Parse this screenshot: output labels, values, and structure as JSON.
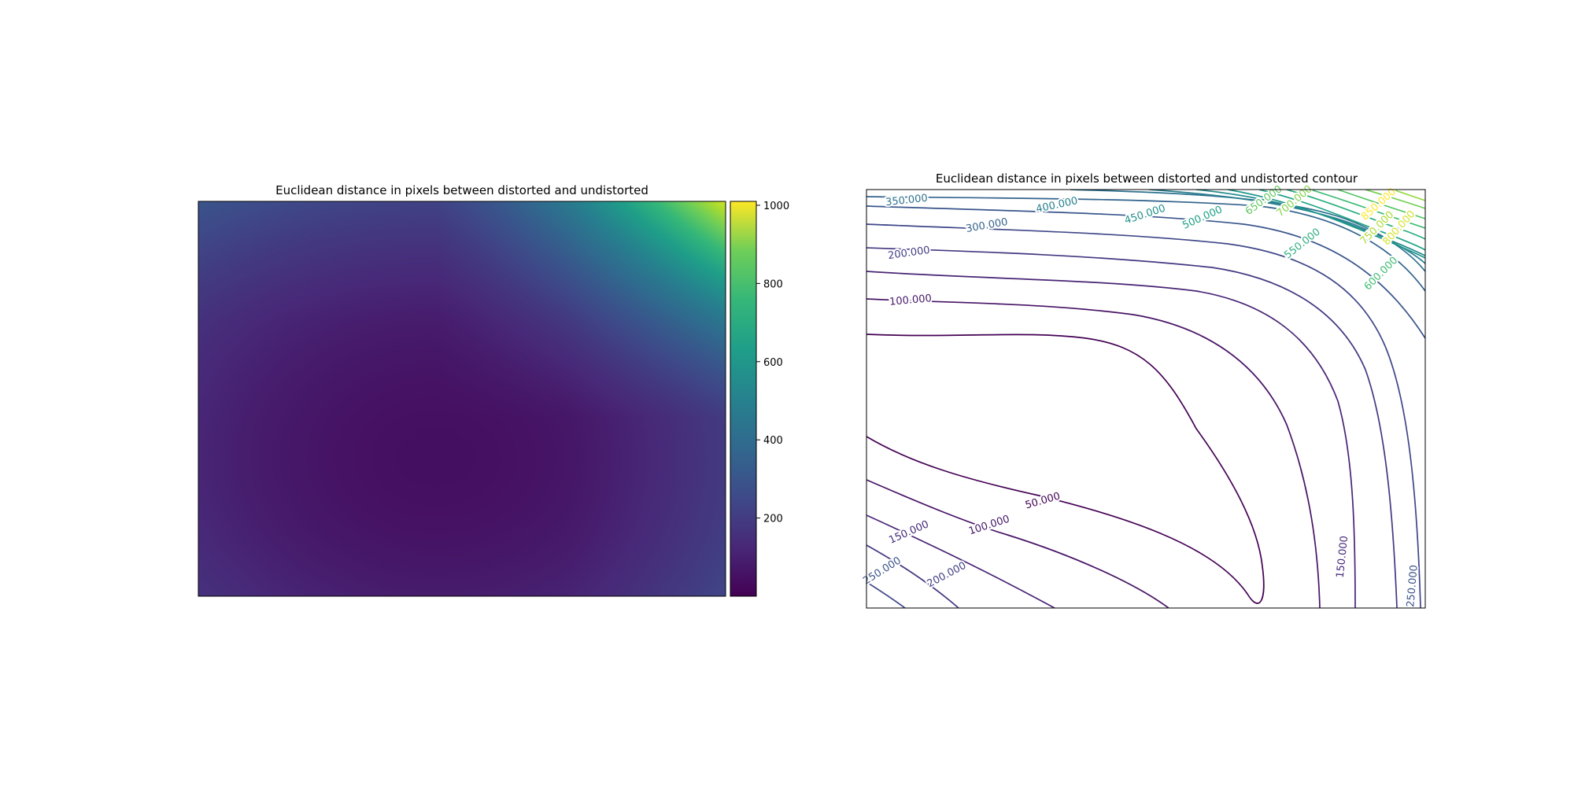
{
  "chart_data": [
    {
      "type": "heatmap",
      "title": "Euclidean distance in pixels between distorted and undistorted",
      "colormap": "viridis",
      "value_range": [
        0,
        1010
      ],
      "colorbar": {
        "ticks": [
          200,
          400,
          600,
          800,
          1000
        ],
        "tick_labels": [
          "200",
          "400",
          "600",
          "800",
          "1000"
        ]
      },
      "axes_visible": false,
      "extent": [
        0,
        1,
        0,
        1
      ],
      "field": {
        "description_note": "distance field: minimum near lower-centre, maximum at top-right corner",
        "min_point": [
          0.45,
          0.35
        ],
        "values_at_corners": {
          "top_left": 260,
          "top_right": 1010,
          "bottom_left": 380,
          "bottom_right": 380
        }
      }
    },
    {
      "type": "contour",
      "title": "Euclidean distance in pixels between distorted and undistorted contour",
      "colormap": "viridis",
      "levels": [
        50,
        100,
        150,
        200,
        250,
        300,
        350,
        400,
        450,
        500,
        550,
        600,
        650,
        700,
        750,
        800,
        850
      ],
      "axes_visible": false,
      "clabels": [
        {
          "text": "350.000",
          "level": 350
        },
        {
          "text": "400.000",
          "level": 400
        },
        {
          "text": "450.000",
          "level": 450
        },
        {
          "text": "500.000",
          "level": 500
        },
        {
          "text": "650.000",
          "level": 650
        },
        {
          "text": "700.000",
          "level": 700
        },
        {
          "text": "850.000",
          "level": 850
        },
        {
          "text": "300.000",
          "level": 300
        },
        {
          "text": "750.000",
          "level": 750
        },
        {
          "text": "800.000",
          "level": 800
        },
        {
          "text": "200.000",
          "level": 200
        },
        {
          "text": "550.000",
          "level": 550
        },
        {
          "text": "600.000",
          "level": 600
        },
        {
          "text": "100.000",
          "level": 100
        },
        {
          "text": "50.000",
          "level": 50
        },
        {
          "text": "150.000",
          "level": 150
        },
        {
          "text": "100.000",
          "level": 100
        },
        {
          "text": "150.000",
          "level": 150
        },
        {
          "text": "200.000",
          "level": 200
        },
        {
          "text": "250.000",
          "level": 250
        },
        {
          "text": "250.000",
          "level": 250
        }
      ]
    }
  ]
}
